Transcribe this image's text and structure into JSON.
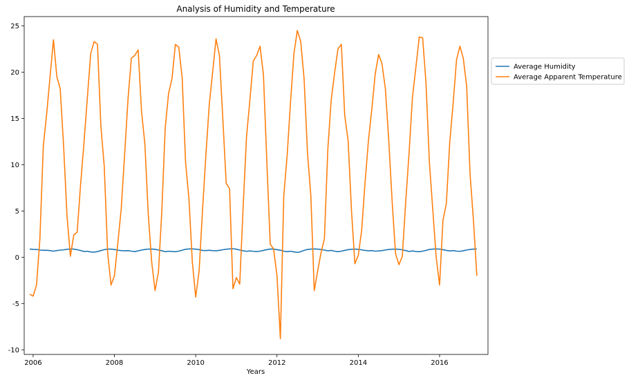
{
  "chart_data": {
    "type": "line",
    "title": "Analysis of Humidity and Temperature",
    "xlabel": "Years",
    "ylabel": "",
    "xlim": [
      "2005-10-12",
      "2017-03-10"
    ],
    "ylim": [
      -10.5,
      26
    ],
    "x_ticks": [
      "2006",
      "2008",
      "2010",
      "2012",
      "2014",
      "2016"
    ],
    "y_ticks": [
      -10,
      -5,
      0,
      5,
      10,
      15,
      20,
      25
    ],
    "grid": false,
    "legend": {
      "placement": "outside-right"
    },
    "x": [
      "2005-12",
      "2006-01",
      "2006-02",
      "2006-03",
      "2006-04",
      "2006-05",
      "2006-06",
      "2006-07",
      "2006-08",
      "2006-09",
      "2006-10",
      "2006-11",
      "2006-12",
      "2007-01",
      "2007-02",
      "2007-03",
      "2007-04",
      "2007-05",
      "2007-06",
      "2007-07",
      "2007-08",
      "2007-09",
      "2007-10",
      "2007-11",
      "2007-12",
      "2008-01",
      "2008-02",
      "2008-03",
      "2008-04",
      "2008-05",
      "2008-06",
      "2008-07",
      "2008-08",
      "2008-09",
      "2008-10",
      "2008-11",
      "2008-12",
      "2009-01",
      "2009-02",
      "2009-03",
      "2009-04",
      "2009-05",
      "2009-06",
      "2009-07",
      "2009-08",
      "2009-09",
      "2009-10",
      "2009-11",
      "2009-12",
      "2010-01",
      "2010-02",
      "2010-03",
      "2010-04",
      "2010-05",
      "2010-06",
      "2010-07",
      "2010-08",
      "2010-09",
      "2010-10",
      "2010-11",
      "2010-12",
      "2011-01",
      "2011-02",
      "2011-03",
      "2011-04",
      "2011-05",
      "2011-06",
      "2011-07",
      "2011-08",
      "2011-09",
      "2011-10",
      "2011-11",
      "2011-12",
      "2012-01",
      "2012-02",
      "2012-03",
      "2012-04",
      "2012-05",
      "2012-06",
      "2012-07",
      "2012-08",
      "2012-09",
      "2012-10",
      "2012-11",
      "2012-12",
      "2013-01",
      "2013-02",
      "2013-03",
      "2013-04",
      "2013-05",
      "2013-06",
      "2013-07",
      "2013-08",
      "2013-09",
      "2013-10",
      "2013-11",
      "2013-12",
      "2014-01",
      "2014-02",
      "2014-03",
      "2014-04",
      "2014-05",
      "2014-06",
      "2014-07",
      "2014-08",
      "2014-09",
      "2014-10",
      "2014-11",
      "2014-12",
      "2015-01",
      "2015-02",
      "2015-03",
      "2015-04",
      "2015-05",
      "2015-06",
      "2015-07",
      "2015-08",
      "2015-09",
      "2015-10",
      "2015-11",
      "2015-12",
      "2016-01",
      "2016-02",
      "2016-03",
      "2016-04",
      "2016-05",
      "2016-06",
      "2016-07",
      "2016-08",
      "2016-09",
      "2016-10",
      "2016-11",
      "2016-12"
    ],
    "series": [
      {
        "name": "Average Humidity",
        "color": "#1f77b4",
        "values": [
          0.89,
          0.85,
          0.84,
          0.78,
          0.75,
          0.76,
          0.72,
          0.66,
          0.72,
          0.77,
          0.8,
          0.86,
          0.89,
          0.88,
          0.82,
          0.73,
          0.62,
          0.65,
          0.57,
          0.55,
          0.61,
          0.72,
          0.82,
          0.88,
          0.88,
          0.84,
          0.76,
          0.72,
          0.7,
          0.71,
          0.66,
          0.61,
          0.69,
          0.77,
          0.84,
          0.88,
          0.89,
          0.86,
          0.78,
          0.7,
          0.6,
          0.65,
          0.62,
          0.6,
          0.66,
          0.76,
          0.86,
          0.9,
          0.9,
          0.88,
          0.82,
          0.74,
          0.72,
          0.76,
          0.71,
          0.7,
          0.75,
          0.81,
          0.87,
          0.9,
          0.92,
          0.87,
          0.78,
          0.7,
          0.64,
          0.68,
          0.64,
          0.62,
          0.66,
          0.74,
          0.82,
          0.89,
          0.88,
          0.82,
          0.76,
          0.66,
          0.6,
          0.65,
          0.58,
          0.52,
          0.6,
          0.74,
          0.84,
          0.88,
          0.9,
          0.88,
          0.84,
          0.77,
          0.7,
          0.74,
          0.66,
          0.6,
          0.66,
          0.74,
          0.82,
          0.86,
          0.88,
          0.86,
          0.8,
          0.74,
          0.7,
          0.72,
          0.66,
          0.68,
          0.72,
          0.78,
          0.84,
          0.87,
          0.88,
          0.86,
          0.8,
          0.72,
          0.62,
          0.68,
          0.62,
          0.6,
          0.66,
          0.74,
          0.84,
          0.88,
          0.9,
          0.88,
          0.82,
          0.74,
          0.68,
          0.72,
          0.66,
          0.64,
          0.7,
          0.78,
          0.84,
          0.88,
          0.9
        ]
      },
      {
        "name": "Average Apparent Temperature",
        "color": "#ff7f0e",
        "values": [
          -4.0,
          -4.2,
          -3.0,
          2.0,
          12.0,
          15.5,
          19.5,
          23.5,
          19.5,
          18.2,
          12.0,
          4.5,
          0.1,
          2.4,
          2.7,
          7.8,
          12.3,
          17.2,
          22.0,
          23.3,
          23.0,
          14.2,
          9.8,
          0.5,
          -3.0,
          -2.0,
          1.5,
          5.2,
          11.0,
          17.0,
          21.5,
          21.8,
          22.4,
          15.8,
          12.2,
          4.6,
          -0.5,
          -3.6,
          -1.6,
          5.0,
          14.0,
          17.7,
          19.3,
          23.0,
          22.7,
          19.4,
          10.3,
          6.3,
          -0.5,
          -4.3,
          -1.5,
          5.0,
          11.0,
          16.5,
          20.0,
          23.6,
          21.8,
          15.0,
          8.0,
          7.4,
          -3.4,
          -2.2,
          -2.9,
          5.4,
          13.0,
          17.0,
          21.2,
          21.8,
          22.8,
          19.7,
          10.3,
          1.4,
          0.9,
          -2.0,
          -8.8,
          6.6,
          11.0,
          16.8,
          22.0,
          24.5,
          23.3,
          19.3,
          11.3,
          6.6,
          -3.6,
          -1.5,
          0.5,
          2.0,
          11.6,
          17.0,
          19.9,
          22.5,
          23.0,
          15.3,
          12.6,
          5.0,
          -0.7,
          0.2,
          2.9,
          8.1,
          12.6,
          16.0,
          19.8,
          21.9,
          20.9,
          18.2,
          12.6,
          6.0,
          0.4,
          -0.8,
          0.1,
          6.0,
          11.3,
          17.3,
          20.5,
          23.8,
          23.7,
          18.8,
          10.2,
          5.1,
          0.0,
          -3.0,
          4.0,
          5.8,
          12.4,
          16.6,
          21.3,
          22.8,
          21.5,
          18.5,
          9.0,
          4.0,
          -2.0
        ]
      }
    ]
  }
}
